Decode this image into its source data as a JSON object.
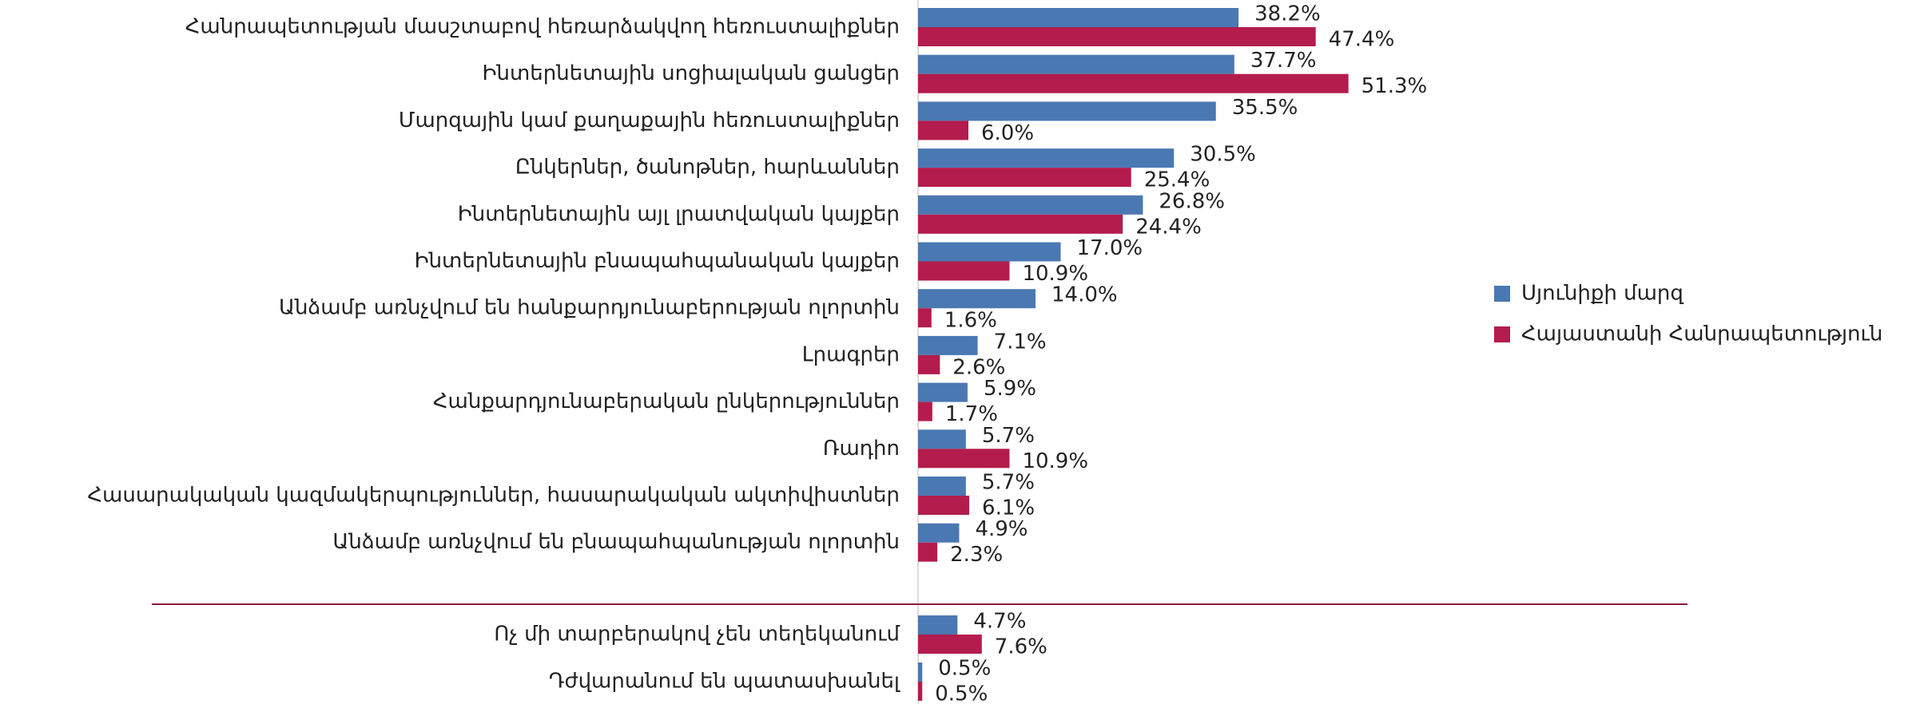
{
  "chart_data": {
    "type": "hbar",
    "categories": [
      "Հանրապետության մասշտաբով հեռարձակվող հեռուստալիքներ",
      "Ինտերնետային սոցիալական ցանցեր",
      "Մարզային կամ քաղաքային հեռուստալիքներ",
      "Ընկերներ, ծանոթներ, հարևաններ",
      "Ինտերնետային այլ լրատվական կայքեր",
      "Ինտերնետային բնապահպանական կայքեր",
      "Անձամբ առնչվում են հանքարդյունաբերության ոլորտին",
      "Լրագրեր",
      "Հանքարդյունաբերական ընկերություններ",
      "Ռադիո",
      "Հասարակական կազմակերպություններ, հասարակական ակտիվիստներ",
      "Անձամբ առնչվում են բնապահպանության ոլորտին",
      "Ոչ մի տարբերակով չեն տեղեկանում",
      "Դժվարանում են պատասխանել"
    ],
    "series": [
      {
        "name": "Սյունիքի մարզ",
        "color": "#4a78b2",
        "values": [
          38.2,
          37.7,
          35.5,
          30.5,
          26.8,
          17.0,
          14.0,
          7.1,
          5.9,
          5.7,
          5.7,
          4.9,
          4.7,
          0.5
        ],
        "value_labels": [
          "38.2%",
          "37.7%",
          "35.5%",
          "30.5%",
          "26.8%",
          "17.0%",
          "14.0%",
          "7.1%",
          "5.9%",
          "5.7%",
          "5.7%",
          "4.9%",
          "4.7%",
          "0.5%"
        ]
      },
      {
        "name": "Հայաստանի Հանրապետություն",
        "color": "#b31c4c",
        "values": [
          47.4,
          51.3,
          6.0,
          25.4,
          24.4,
          10.9,
          1.6,
          2.6,
          1.7,
          10.9,
          6.1,
          2.3,
          7.6,
          0.5
        ],
        "value_labels": [
          "47.4%",
          "51.3%",
          "6.0%",
          "25.4%",
          "24.4%",
          "10.9%",
          "1.6%",
          "2.6%",
          "1.7%",
          "10.9%",
          "6.1%",
          "2.3%",
          "7.6%",
          "0.5%"
        ]
      }
    ],
    "legend": "right"
  }
}
